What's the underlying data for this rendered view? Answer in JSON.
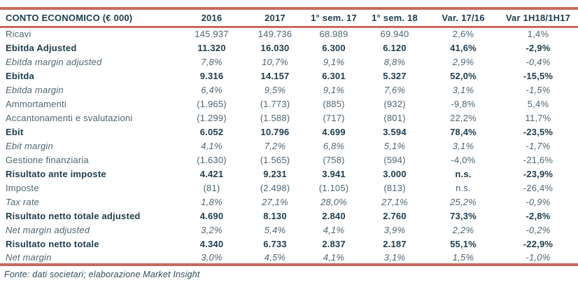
{
  "colors": {
    "accent_border": "#c8695c",
    "text_bold": "#1d3c4e",
    "text_regular": "#4e6572",
    "background": "#ffffff"
  },
  "table": {
    "title": "CONTO ECONOMICO (€ 000)",
    "columns": [
      "2016",
      "2017",
      "1° sem. 17",
      "1° sem. 18",
      "Var. 17/16",
      "Var 1H18/1H17"
    ],
    "rows": [
      {
        "label": "Ricavi",
        "style": "normal",
        "values": [
          "145.937",
          "149.736",
          "68.989",
          "69.940",
          "2,6%",
          "1,4%"
        ]
      },
      {
        "label": "Ebitda Adjusted",
        "style": "bold",
        "values": [
          "11.320",
          "16.030",
          "6.300",
          "6.120",
          "41,6%",
          "-2,9%"
        ]
      },
      {
        "label": "Ebitda margin adjusted",
        "style": "italic",
        "values": [
          "7,8%",
          "10,7%",
          "9,1%",
          "8,8%",
          "2,9%",
          "-0,4%"
        ]
      },
      {
        "label": "Ebitda",
        "style": "bold",
        "values": [
          "9.316",
          "14.157",
          "6.301",
          "5.327",
          "52,0%",
          "-15,5%"
        ]
      },
      {
        "label": "Ebitda margin",
        "style": "italic",
        "values": [
          "6,4%",
          "9,5%",
          "9,1%",
          "7,6%",
          "3,1%",
          "-1,5%"
        ]
      },
      {
        "label": "Ammortamenti",
        "style": "normal",
        "values": [
          "(1.965)",
          "(1.773)",
          "(885)",
          "(932)",
          "-9,8%",
          "5,4%"
        ]
      },
      {
        "label": "Accantonamenti e svalutazioni",
        "style": "normal",
        "values": [
          "(1.299)",
          "(1.588)",
          "(717)",
          "(801)",
          "22,2%",
          "11,7%"
        ]
      },
      {
        "label": "Ebit",
        "style": "bold",
        "values": [
          "6.052",
          "10.796",
          "4.699",
          "3.594",
          "78,4%",
          "-23,5%"
        ]
      },
      {
        "label": "Ebit margin",
        "style": "italic",
        "values": [
          "4,1%",
          "7,2%",
          "6,8%",
          "5,1%",
          "3,1%",
          "-1,7%"
        ]
      },
      {
        "label": "Gestione finanziaria",
        "style": "normal",
        "values": [
          "(1.630)",
          "(1.565)",
          "(758)",
          "(594)",
          "-4,0%",
          "-21,6%"
        ]
      },
      {
        "label": "Risultato ante imposte",
        "style": "bold",
        "values": [
          "4.421",
          "9.231",
          "3.941",
          "3.000",
          "n.s.",
          "-23,9%"
        ]
      },
      {
        "label": "Imposte",
        "style": "normal",
        "values": [
          "(81)",
          "(2.498)",
          "(1.105)",
          "(813)",
          "n.s.",
          "-26,4%"
        ]
      },
      {
        "label": "Tax rate",
        "style": "italic",
        "values": [
          "1,8%",
          "27,1%",
          "28,0%",
          "27,1%",
          "25,2%",
          "-0,9%"
        ]
      },
      {
        "label": "Risultato netto totale adjusted",
        "style": "bold",
        "values": [
          "4.690",
          "8.130",
          "2.840",
          "2.760",
          "73,3%",
          "-2,8%"
        ]
      },
      {
        "label": "Net margin adjusted",
        "style": "italic",
        "values": [
          "3,2%",
          "5,4%",
          "4,1%",
          "3,9%",
          "2,2%",
          "-0,2%"
        ]
      },
      {
        "label": "Risultato netto totale",
        "style": "bold",
        "values": [
          "4.340",
          "6.733",
          "2.837",
          "2.187",
          "55,1%",
          "-22,9%"
        ]
      },
      {
        "label": "Net margin",
        "style": "italic",
        "values": [
          "3,0%",
          "4,5%",
          "4,1%",
          "3,1%",
          "1,5%",
          "-1,0%"
        ]
      }
    ]
  },
  "footer": {
    "source_note": "Fonte: dati societari; elaborazione Market Insight"
  }
}
